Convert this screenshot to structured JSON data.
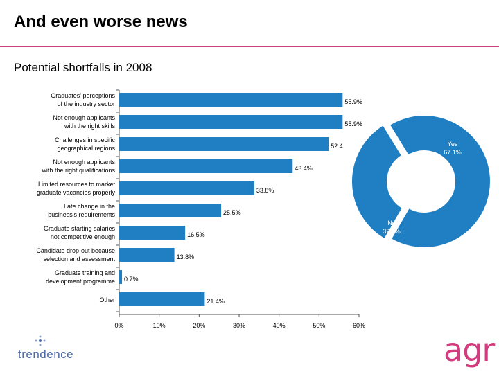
{
  "slide": {
    "title": "And even worse news",
    "subtitle": "Potential shortfalls in 2008"
  },
  "colors": {
    "bar": "#1f7fc2",
    "accent": "#d23b7e",
    "trendence": "#4a6aa8"
  },
  "chart_data": [
    {
      "type": "bar",
      "orientation": "horizontal",
      "categories": [
        [
          "Graduates' perceptions",
          "of the industry sector"
        ],
        [
          "Not enough applicants",
          "with the right skills"
        ],
        [
          "Challenges in specific",
          "geographical regions"
        ],
        [
          "Not enough applicants",
          "with the right qualifications"
        ],
        [
          "Limited resources to market",
          "graduate vacancies properly"
        ],
        [
          "Late change in the",
          "business's requirements"
        ],
        [
          "Graduate starting salaries",
          "not competitive enough"
        ],
        [
          "Candidate drop-out because",
          "selection and assessment"
        ],
        [
          "Graduate training and",
          "development programme"
        ],
        [
          "Other"
        ]
      ],
      "values": [
        55.9,
        55.9,
        52.4,
        43.4,
        33.8,
        25.5,
        16.5,
        13.8,
        0.7,
        21.4
      ],
      "data_labels": [
        "55.9%",
        "55.9%",
        "52.4",
        "43.4%",
        "33.8%",
        "25.5%",
        "16.5%",
        "13.8%",
        "0.7%",
        "21.4%"
      ],
      "x_ticks": [
        0,
        10,
        20,
        30,
        40,
        50,
        60
      ],
      "x_tick_labels": [
        "0%",
        "10%",
        "20%",
        "30%",
        "40%",
        "50%",
        "60%"
      ],
      "xlim": [
        0,
        60
      ]
    },
    {
      "type": "pie",
      "variant": "donut",
      "slices": [
        {
          "label": "Yes",
          "value": 67.1,
          "value_label": "67.1%"
        },
        {
          "label": "No",
          "value": 32.9,
          "value_label": "32.9%"
        }
      ]
    }
  ],
  "logos": {
    "left_name": "trendence",
    "right_name": "agr"
  }
}
